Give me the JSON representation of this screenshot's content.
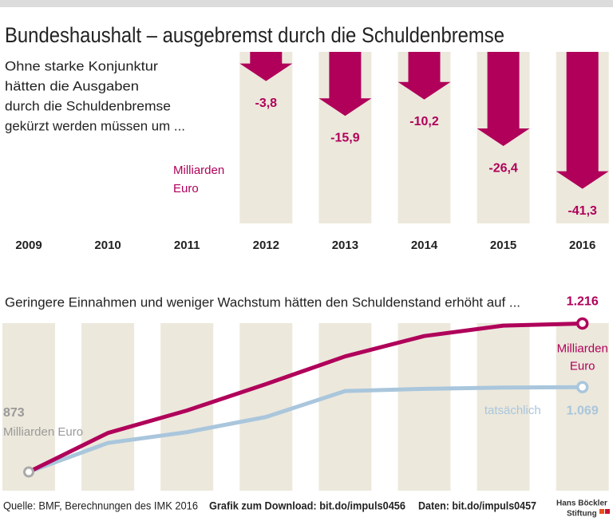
{
  "header": {
    "title": "Bundeshaushalt – ausgebremst durch die Schuldenbremse"
  },
  "chart_data": [
    {
      "type": "arrow",
      "subtitle_lines": [
        "Ohne starke Konjunktur",
        "hätten die Ausgaben",
        "durch die Schuldenbremse",
        "gekürzt werden müssen um ..."
      ],
      "unit_lines": [
        "Milliarden",
        "Euro"
      ],
      "categories": [
        "2009",
        "2010",
        "2011",
        "2012",
        "2013",
        "2014",
        "2015",
        "2016"
      ],
      "values": [
        null,
        null,
        null,
        -3.8,
        -15.9,
        -10.2,
        -26.4,
        -41.3
      ],
      "value_labels": [
        null,
        null,
        null,
        "-3,8",
        "-15,9",
        "-10,2",
        "-26,4",
        "-41,3"
      ],
      "color": "#b0005a"
    },
    {
      "type": "line",
      "subtitle": "Geringere Einnahmen und weniger Wachstum hätten den Schuldenstand erhöht auf ...",
      "x": [
        2009,
        2010,
        2011,
        2012,
        2013,
        2014,
        2015,
        2016
      ],
      "ylim": [
        850,
        1250
      ],
      "start_unit_label": "Milliarden Euro",
      "series": [
        {
          "color": "#b0005a",
          "values": [
            873,
            963,
            1015,
            1076,
            1140,
            1187,
            1211,
            1216
          ],
          "value_labels": [
            null,
            null,
            null,
            null,
            null,
            null,
            null,
            "1.216"
          ],
          "unit_lines": [
            "Milliarden",
            "Euro"
          ]
        },
        {
          "name": "tatsächlich",
          "color": "#a9c6dc",
          "values": [
            873,
            940,
            965,
            1000,
            1060,
            1065,
            1068,
            1069
          ],
          "value_labels": [
            "873",
            null,
            null,
            null,
            null,
            null,
            null,
            "1.069"
          ]
        }
      ]
    }
  ],
  "footer": {
    "source": "Quelle: BMF, Berechnungen des IMK 2016",
    "download": "Grafik zum Download: bit.do/impuls0456",
    "data": "Daten: bit.do/impuls0457",
    "logo_lines": [
      "Hans Böckler",
      "Stiftung"
    ]
  }
}
